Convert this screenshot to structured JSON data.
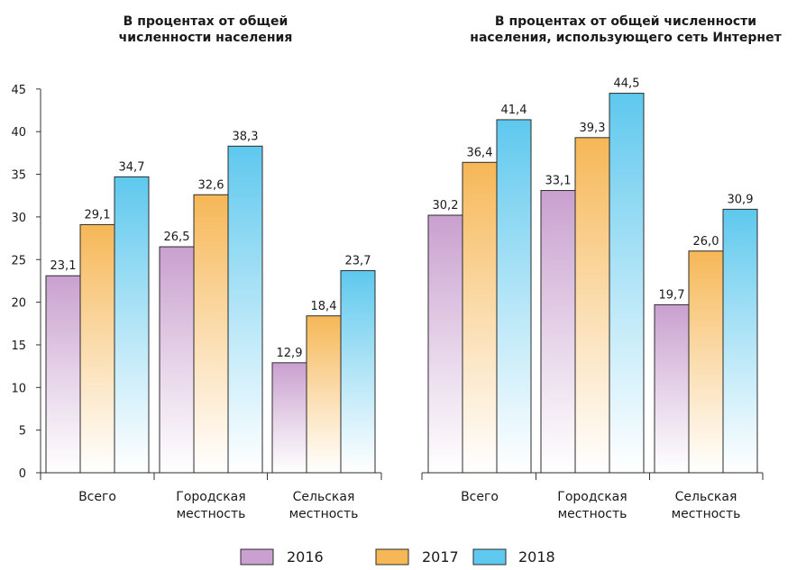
{
  "chart_data": {
    "type": "bar",
    "colors": {
      "2016": "#c9a0cf",
      "2017": "#f6b756",
      "2018": "#5ec8ee",
      "border": "#2b2b2b"
    },
    "legend": {
      "position": "bottom-center",
      "items": [
        "2016",
        "2017",
        "2018"
      ]
    },
    "panels": [
      {
        "title": [
          "В процентах от общей",
          "численности населения"
        ],
        "categories": [
          [
            "Всего"
          ],
          [
            "Городская",
            "местность"
          ],
          [
            "Сельская",
            "местность"
          ]
        ],
        "ylim": [
          0,
          45
        ],
        "yticks": [
          0,
          5,
          10,
          15,
          20,
          25,
          30,
          35,
          40,
          45
        ],
        "show_y_axis": true,
        "series": [
          {
            "name": "2016",
            "values": [
              23.1,
              26.5,
              12.9
            ],
            "labels": [
              "23,1",
              "26,5",
              "12,9"
            ]
          },
          {
            "name": "2017",
            "values": [
              29.1,
              32.6,
              18.4
            ],
            "labels": [
              "29,1",
              "32,6",
              "18,4"
            ]
          },
          {
            "name": "2018",
            "values": [
              34.7,
              38.3,
              23.7
            ],
            "labels": [
              "34,7",
              "38,3",
              "23,7"
            ]
          }
        ]
      },
      {
        "title": [
          "В процентах от общей численности",
          "населения, использующего сеть Интернет"
        ],
        "categories": [
          [
            "Всего"
          ],
          [
            "Городская",
            "местность"
          ],
          [
            "Сельская",
            "местность"
          ]
        ],
        "ylim": [
          0,
          45
        ],
        "yticks": [],
        "show_y_axis": false,
        "series": [
          {
            "name": "2016",
            "values": [
              30.2,
              33.1,
              19.7
            ],
            "labels": [
              "30,2",
              "33,1",
              "19,7"
            ]
          },
          {
            "name": "2017",
            "values": [
              36.4,
              39.3,
              26.0
            ],
            "labels": [
              "36,4",
              "39,3",
              "26,0"
            ]
          },
          {
            "name": "2018",
            "values": [
              41.4,
              44.5,
              30.9
            ],
            "labels": [
              "41,4",
              "44,5",
              "30,9"
            ]
          }
        ]
      }
    ]
  }
}
